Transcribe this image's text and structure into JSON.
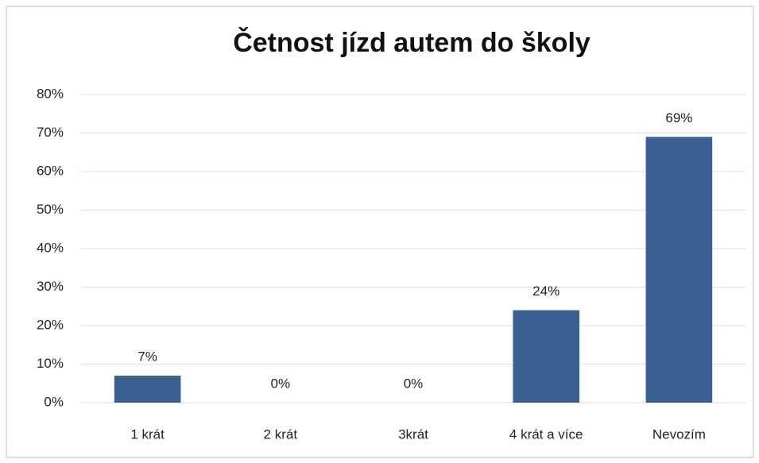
{
  "chart_data": {
    "type": "bar",
    "title": "Četnost jízd autem do školy",
    "categories": [
      "1 krát",
      "2 krát",
      "3krát",
      "4 krát a více",
      "Nevozím"
    ],
    "values": [
      7,
      0,
      0,
      24,
      69
    ],
    "value_labels": [
      "7%",
      "0%",
      "0%",
      "24%",
      "69%"
    ],
    "color": "#3a5f91",
    "ylim": [
      0,
      80
    ],
    "yticks": [
      {
        "value": 0,
        "label": "0%"
      },
      {
        "value": 10,
        "label": "10%"
      },
      {
        "value": 20,
        "label": "20%"
      },
      {
        "value": 30,
        "label": "30%"
      },
      {
        "value": 40,
        "label": "40%"
      },
      {
        "value": 50,
        "label": "50%"
      },
      {
        "value": 60,
        "label": "60%"
      },
      {
        "value": 70,
        "label": "70%"
      },
      {
        "value": 80,
        "label": "80%"
      }
    ],
    "grid": true
  }
}
